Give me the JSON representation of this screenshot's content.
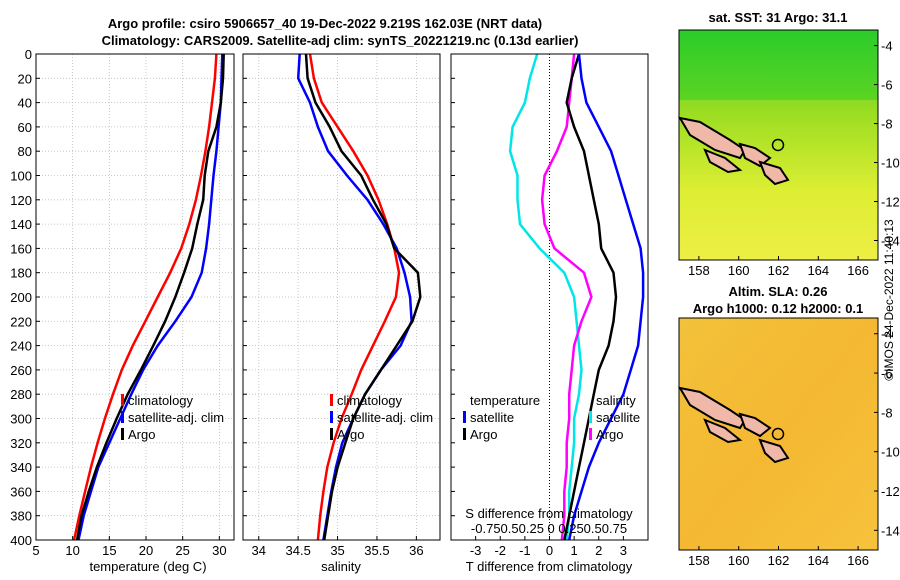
{
  "figure": {
    "title_line1": "Argo profile: csiro 5906657_40 19-Dec-2022 9.219S 162.03E (NRT data)",
    "title_line2": "Climatology: CARS2009. Satellite-adj clim: synTS_20221219.nc (0.13d earlier)",
    "credit": "©IMOS 24-Dec-2022 11:40:13"
  },
  "colors": {
    "climatology": "#ff0000",
    "satellite": "#0000ff",
    "argo": "#000000",
    "sat_diff": "#00e6e6",
    "sal_diff": "#ff00ff"
  },
  "chart_data": [
    {
      "type": "line",
      "id": "temperature",
      "xlabel": "temperature (deg C)",
      "ylabel": "",
      "xlim": [
        5,
        32
      ],
      "ylim": [
        400,
        0
      ],
      "xticks": [
        "5",
        "10",
        "15",
        "20",
        "25",
        "30"
      ],
      "xtick_values": [
        5,
        10,
        15,
        20,
        25,
        30
      ],
      "yticks": [
        "0",
        "20",
        "40",
        "60",
        "80",
        "100",
        "120",
        "140",
        "160",
        "180",
        "200",
        "220",
        "240",
        "260",
        "280",
        "300",
        "320",
        "340",
        "360",
        "380",
        "400"
      ],
      "legend": [
        "climatology",
        "satellite-adj. clim",
        "Argo"
      ],
      "grid": true,
      "series": [
        {
          "name": "climatology",
          "color": "#ff0000",
          "depth": [
            0,
            20,
            40,
            60,
            80,
            100,
            120,
            140,
            160,
            180,
            200,
            220,
            240,
            260,
            280,
            300,
            320,
            340,
            360,
            380,
            400
          ],
          "values": [
            29.6,
            29.4,
            29.0,
            28.6,
            28.1,
            27.5,
            26.8,
            25.9,
            24.8,
            23.3,
            21.6,
            19.9,
            18.2,
            16.7,
            15.5,
            14.4,
            13.4,
            12.5,
            11.7,
            10.9,
            10.2
          ]
        },
        {
          "name": "satellite-adj. clim",
          "color": "#0000ff",
          "depth": [
            0,
            20,
            40,
            60,
            80,
            100,
            120,
            140,
            160,
            180,
            200,
            220,
            240,
            260,
            280,
            300,
            320,
            340,
            360,
            380,
            400
          ],
          "values": [
            30.4,
            30.3,
            30.2,
            29.9,
            29.6,
            29.2,
            28.9,
            28.6,
            28.2,
            27.6,
            26.2,
            24.0,
            21.6,
            19.6,
            18.0,
            16.5,
            15.0,
            13.5,
            12.5,
            11.5,
            10.8
          ]
        },
        {
          "name": "Argo",
          "color": "#000000",
          "depth": [
            0,
            20,
            40,
            60,
            80,
            100,
            120,
            140,
            160,
            180,
            200,
            220,
            240,
            260,
            280,
            300,
            320,
            340,
            360,
            380,
            400
          ],
          "values": [
            30.6,
            30.5,
            30.2,
            29.6,
            28.5,
            28.0,
            27.8,
            27.0,
            26.3,
            25.2,
            24.0,
            22.6,
            21.0,
            19.3,
            17.5,
            16.0,
            14.6,
            13.3,
            12.2,
            11.2,
            10.6
          ]
        }
      ]
    },
    {
      "type": "line",
      "id": "salinity",
      "xlabel": "salinity",
      "xlim": [
        33.8,
        36.3
      ],
      "ylim": [
        400,
        0
      ],
      "xticks": [
        "34",
        "34.5",
        "35",
        "35.5",
        "36"
      ],
      "xtick_values": [
        34,
        34.5,
        35,
        35.5,
        36
      ],
      "legend": [
        "climatology",
        "satellite-adj. clim",
        "Argo"
      ],
      "grid": true,
      "series": [
        {
          "name": "climatology",
          "color": "#ff0000",
          "depth": [
            0,
            20,
            40,
            60,
            80,
            100,
            120,
            140,
            160,
            180,
            200,
            220,
            240,
            260,
            280,
            300,
            320,
            340,
            360,
            380,
            400
          ],
          "values": [
            34.65,
            34.7,
            34.8,
            35.0,
            35.2,
            35.38,
            35.52,
            35.63,
            35.72,
            35.78,
            35.74,
            35.6,
            35.45,
            35.3,
            35.18,
            35.05,
            34.95,
            34.87,
            34.82,
            34.78,
            34.75
          ]
        },
        {
          "name": "satellite-adj. clim",
          "color": "#0000ff",
          "depth": [
            0,
            20,
            40,
            60,
            80,
            100,
            120,
            140,
            160,
            180,
            200,
            220,
            240,
            260,
            280,
            300,
            320,
            340,
            360,
            380,
            400
          ],
          "values": [
            34.52,
            34.5,
            34.65,
            34.75,
            34.88,
            35.12,
            35.38,
            35.58,
            35.75,
            35.85,
            35.92,
            35.94,
            35.8,
            35.55,
            35.35,
            35.2,
            35.06,
            34.98,
            34.92,
            34.87,
            34.82
          ]
        },
        {
          "name": "Argo",
          "color": "#000000",
          "depth": [
            0,
            20,
            40,
            60,
            80,
            100,
            120,
            140,
            160,
            180,
            200,
            220,
            240,
            260,
            280,
            300,
            320,
            340,
            360,
            380,
            400
          ],
          "values": [
            34.6,
            34.62,
            34.72,
            34.9,
            35.05,
            35.3,
            35.45,
            35.62,
            35.72,
            36.02,
            36.05,
            35.95,
            35.75,
            35.55,
            35.35,
            35.2,
            35.1,
            35.0,
            34.93,
            34.88,
            34.83
          ]
        }
      ]
    },
    {
      "type": "line",
      "id": "difference",
      "xlabel": "T difference from climatology",
      "xlabel_top": "S difference from climatology",
      "xlim": [
        -4,
        4
      ],
      "ylim": [
        400,
        0
      ],
      "xticks": [
        "-3",
        "-2",
        "-1",
        "0",
        "1",
        "2",
        "3"
      ],
      "xtick_values": [
        -3,
        -2,
        -1,
        0,
        1,
        2,
        3
      ],
      "top_ticks": "-0.750.50.25  0  0.250.50.75",
      "legend_left_title": "temperature",
      "legend_right_title": "salinity",
      "legend_left": [
        "satellite",
        "Argo"
      ],
      "legend_right": [
        "satellite",
        "Argo"
      ],
      "grid": false,
      "series": [
        {
          "name": "T satellite",
          "color": "#00e6e6",
          "depth": [
            0,
            20,
            40,
            60,
            80,
            100,
            120,
            140,
            160,
            180,
            200,
            220,
            240,
            260,
            280,
            300,
            320,
            340,
            360,
            380,
            400
          ],
          "values": [
            -0.5,
            -0.8,
            -1.0,
            -1.5,
            -1.6,
            -1.3,
            -1.3,
            -1.2,
            -0.4,
            0.6,
            1.0,
            1.1,
            1.2,
            1.3,
            1.2,
            1.0,
            1.0,
            0.9,
            0.8,
            0.8,
            0.7
          ]
        },
        {
          "name": "S Argo",
          "color": "#ff00ff",
          "depth": [
            0,
            20,
            40,
            60,
            80,
            100,
            120,
            140,
            160,
            180,
            200,
            220,
            240,
            260,
            280,
            300,
            320,
            340,
            360,
            380,
            400
          ],
          "values": [
            1.0,
            0.9,
            0.8,
            0.7,
            0.3,
            -0.2,
            -0.3,
            -0.2,
            0.2,
            1.4,
            1.7,
            1.3,
            1.0,
            0.9,
            0.8,
            0.8,
            0.7,
            0.7,
            0.6,
            0.6,
            0.5
          ]
        },
        {
          "name": "T Argo",
          "color": "#000000",
          "depth": [
            0,
            20,
            40,
            60,
            80,
            100,
            120,
            140,
            160,
            180,
            200,
            220,
            240,
            260,
            280,
            300,
            320,
            340,
            360,
            380,
            400
          ],
          "values": [
            1.2,
            0.9,
            0.7,
            1.0,
            1.4,
            1.6,
            1.8,
            2.0,
            2.1,
            2.6,
            2.7,
            2.6,
            2.4,
            2.0,
            1.8,
            1.6,
            1.4,
            1.2,
            1.0,
            0.8,
            0.6
          ]
        },
        {
          "name": "S satellite",
          "color": "#0000ff",
          "depth": [
            0,
            20,
            40,
            60,
            80,
            100,
            120,
            140,
            160,
            180,
            200,
            220,
            240,
            260,
            280,
            300,
            320,
            340,
            360,
            380,
            400
          ],
          "values": [
            1.2,
            1.3,
            1.5,
            2.0,
            2.5,
            2.8,
            3.1,
            3.4,
            3.7,
            3.8,
            3.8,
            3.7,
            3.6,
            3.3,
            3.0,
            2.5,
            2.0,
            1.6,
            1.3,
            1.0,
            0.8
          ]
        }
      ]
    }
  ],
  "maps": [
    {
      "id": "sst",
      "title_line1": "sat. SST: 31 Argo: 31.1",
      "xticks": [
        "158",
        "160",
        "162",
        "164",
        "166"
      ],
      "yticks": [
        "-4",
        "-6",
        "-8",
        "-10",
        "-12",
        "-14"
      ]
    },
    {
      "id": "sla",
      "title_line1": "Altim. SLA: 0.26",
      "title_line2": "Argo h1000: 0.12 h2000: 0.1",
      "xticks": [
        "158",
        "160",
        "162",
        "164",
        "166"
      ],
      "yticks": [
        "-4",
        "-6",
        "-8",
        "-10",
        "-12",
        "-14"
      ]
    }
  ]
}
